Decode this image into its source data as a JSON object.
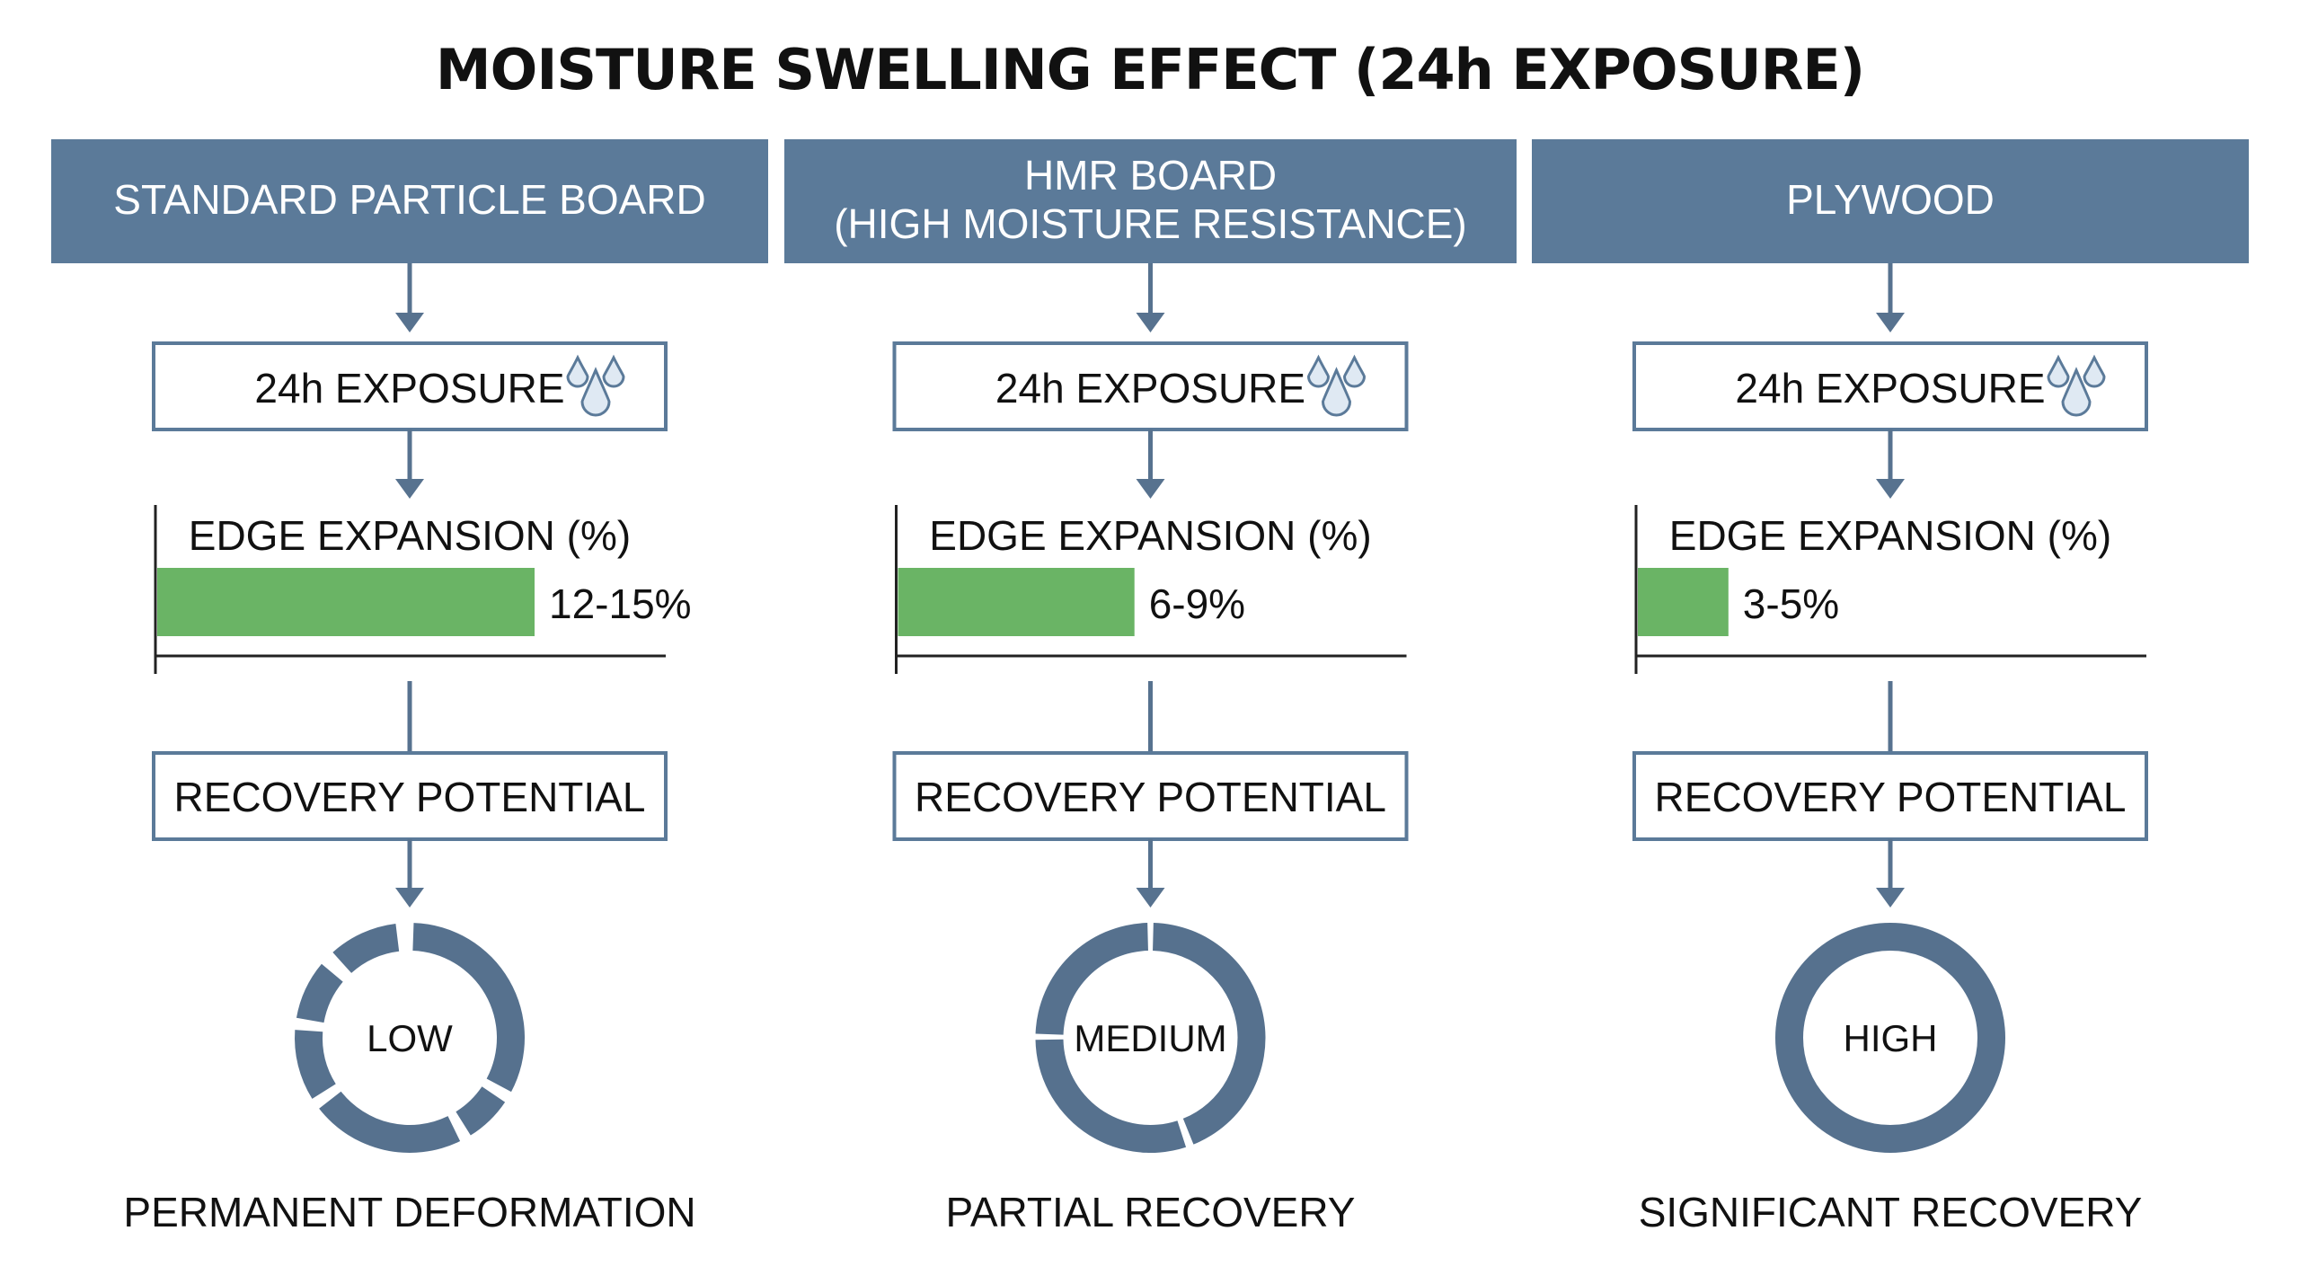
{
  "title": "MOISTURE SWELLING EFFECT (24h EXPOSURE)",
  "colors": {
    "header": "#5b7a99",
    "arrow": "#57728f",
    "box_border": "#5b7a99",
    "bar": "#6ab465",
    "ring": "#56718e",
    "axis": "#222222"
  },
  "columns": [
    {
      "header": [
        "STANDARD PARTICLE BOARD"
      ],
      "exposure_label": "24h EXPOSURE",
      "exposure_icon": "water-drops-icon",
      "expansion_label": "EDGE EXPANSION (%)",
      "expansion_value_label": "12-15%",
      "expansion_level": 0.75,
      "recovery_label": "RECOVERY POTENTIAL",
      "recovery_level": "LOW",
      "recovery_ring": "broken",
      "outcome": "PERMANENT DEFORMATION"
    },
    {
      "header": [
        "HMR BOARD",
        "(HIGH MOISTURE RESISTANCE)"
      ],
      "exposure_label": "24h EXPOSURE",
      "exposure_icon": "water-drops-icon",
      "expansion_label": "EDGE EXPANSION (%)",
      "expansion_value_label": "6-9%",
      "expansion_level": 0.47,
      "recovery_label": "RECOVERY POTENTIAL",
      "recovery_level": "MEDIUM",
      "recovery_ring": "partial",
      "outcome": "PARTIAL RECOVERY"
    },
    {
      "header": [
        "PLYWOOD"
      ],
      "exposure_label": "24h EXPOSURE",
      "exposure_icon": "water-drops-icon",
      "expansion_label": "EDGE EXPANSION (%)",
      "expansion_value_label": "3-5%",
      "expansion_level": 0.18,
      "recovery_label": "RECOVERY POTENTIAL",
      "recovery_level": "HIGH",
      "recovery_ring": "solid",
      "outcome": "SIGNIFICANT RECOVERY"
    }
  ]
}
